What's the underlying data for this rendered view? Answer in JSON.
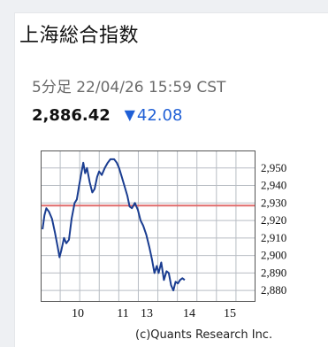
{
  "title": "上海総合指数",
  "timestamp": "5分足 22/04/26 15:59 CST",
  "quote": {
    "price": "2,886.42",
    "direction": "down",
    "change": "42.08"
  },
  "colors": {
    "line": "#1a3d91",
    "reference_line": "#e06b6b",
    "grid": "#b7bcc3",
    "change": "#1f5fd6"
  },
  "chart_data": {
    "type": "line",
    "title": "",
    "xlabel": "",
    "ylabel": "",
    "ylim": [
      2874,
      2960
    ],
    "xlim": [
      9.5,
      15.2
    ],
    "x_tick_labels": [
      {
        "x": 10,
        "label": "10"
      },
      {
        "x": 11,
        "label": "11"
      },
      {
        "x": 12,
        "label": "13"
      },
      {
        "x": 13,
        "label": "14"
      },
      {
        "x": 14,
        "label": "15"
      }
    ],
    "y_tick_labels": [
      "2,950",
      "2,940",
      "2,930",
      "2,920",
      "2,910",
      "2,900",
      "2,890",
      "2,880"
    ],
    "y_ticks": [
      2950,
      2940,
      2930,
      2920,
      2910,
      2900,
      2890,
      2880
    ],
    "reference_line": 2928.5,
    "series": [
      {
        "values": [
          [
            9.55,
            2915
          ],
          [
            9.6,
            2923
          ],
          [
            9.65,
            2927
          ],
          [
            9.72,
            2925
          ],
          [
            9.8,
            2921
          ],
          [
            9.88,
            2913
          ],
          [
            9.95,
            2905
          ],
          [
            10.0,
            2899
          ],
          [
            10.05,
            2903
          ],
          [
            10.12,
            2910
          ],
          [
            10.18,
            2907
          ],
          [
            10.25,
            2909
          ],
          [
            10.32,
            2921
          ],
          [
            10.4,
            2930
          ],
          [
            10.46,
            2932
          ],
          [
            10.52,
            2940
          ],
          [
            10.58,
            2947
          ],
          [
            10.63,
            2953
          ],
          [
            10.68,
            2947
          ],
          [
            10.73,
            2950
          ],
          [
            10.8,
            2942
          ],
          [
            10.87,
            2936
          ],
          [
            10.93,
            2938
          ],
          [
            11.0,
            2945
          ],
          [
            11.05,
            2948
          ],
          [
            11.12,
            2946
          ],
          [
            11.2,
            2950
          ],
          [
            11.28,
            2953
          ],
          [
            11.35,
            2955
          ],
          [
            11.45,
            2955
          ],
          [
            11.52,
            2953
          ],
          [
            11.58,
            2950
          ],
          [
            11.65,
            2945
          ],
          [
            11.72,
            2940
          ],
          [
            11.8,
            2934
          ],
          [
            11.86,
            2928
          ],
          [
            11.92,
            2927
          ],
          [
            12.0,
            2930
          ],
          [
            12.08,
            2926
          ],
          [
            12.15,
            2920
          ],
          [
            12.22,
            2917
          ],
          [
            12.3,
            2912
          ],
          [
            12.38,
            2905
          ],
          [
            12.45,
            2898
          ],
          [
            12.52,
            2890
          ],
          [
            12.58,
            2894
          ],
          [
            12.63,
            2890
          ],
          [
            12.7,
            2896
          ],
          [
            12.77,
            2886
          ],
          [
            12.84,
            2891
          ],
          [
            12.9,
            2890
          ],
          [
            12.96,
            2883
          ],
          [
            13.02,
            2880
          ],
          [
            13.08,
            2885
          ],
          [
            13.14,
            2884
          ],
          [
            13.2,
            2886
          ],
          [
            13.26,
            2887
          ],
          [
            13.32,
            2886
          ]
        ]
      }
    ]
  },
  "credit": "(c)Quants Research Inc."
}
